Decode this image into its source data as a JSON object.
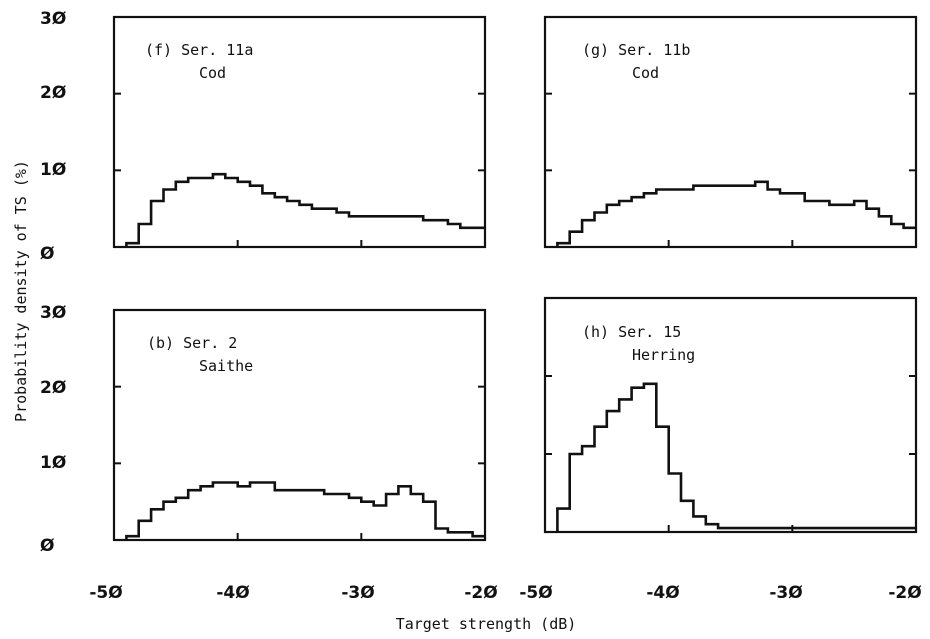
{
  "chart_data": {
    "type": "histogram-grid",
    "ylabel": "Probability density of TS (%)",
    "xlabel": "Target strength (dB)",
    "x_ticks": [
      -50,
      -40,
      -30,
      -20
    ],
    "x_tick_labels": [
      "-5Ø",
      "-4Ø",
      "-3Ø",
      "-2Ø"
    ],
    "y_ticks": [
      0,
      10,
      20,
      30
    ],
    "y_tick_labels": [
      "Ø",
      "1Ø",
      "2Ø",
      "3Ø"
    ],
    "xlim": [
      -50,
      -20
    ],
    "ylim": [
      0,
      30
    ],
    "bin_edges": [
      -49,
      -48,
      -47,
      -46,
      -45,
      -44,
      -43,
      -42,
      -41,
      -40,
      -39,
      -38,
      -37,
      -36,
      -35,
      -34,
      -33,
      -32,
      -31,
      -30,
      -29,
      -28,
      -27,
      -26,
      -25,
      -24,
      -23,
      -22,
      -21,
      -20
    ],
    "panels": [
      {
        "id": "f",
        "line1": "(f) Ser. 11a",
        "line2": "Cod",
        "values": [
          0.5,
          3,
          6,
          7.5,
          8.5,
          9,
          9,
          9.5,
          9,
          8.5,
          8,
          7,
          6.5,
          6,
          5.5,
          5,
          5,
          4.5,
          4,
          4,
          4,
          4,
          4,
          4,
          3.5,
          3.5,
          3,
          2.5,
          2.5
        ]
      },
      {
        "id": "g",
        "line1": "(g) Ser. 11b",
        "line2": "Cod",
        "values": [
          0.5,
          2,
          3.5,
          4.5,
          5.5,
          6,
          6.5,
          7,
          7.5,
          7.5,
          7.5,
          8,
          8,
          8,
          8,
          8,
          8.5,
          7.5,
          7,
          7,
          6,
          6,
          5.5,
          5.5,
          6,
          5,
          4,
          3,
          2.5
        ]
      },
      {
        "id": "b",
        "line1": "(b) Ser. 2",
        "line2": "Saithe",
        "values": [
          0.5,
          2.5,
          4,
          5,
          5.5,
          6.5,
          7,
          7.5,
          7.5,
          7,
          7.5,
          7.5,
          6.5,
          6.5,
          6.5,
          6.5,
          6,
          6,
          5.5,
          5,
          4.5,
          6,
          7,
          6,
          5,
          1.5,
          1,
          1,
          0.5
        ]
      },
      {
        "id": "h",
        "line1": "(h) Ser. 15",
        "line2": "Herring",
        "values": [
          3,
          10,
          11,
          13.5,
          15.5,
          17,
          18.5,
          19,
          13.5,
          7.5,
          4,
          2,
          1,
          0.5,
          0.5,
          0.5,
          0.5,
          0.5,
          0.5,
          0.5,
          0.5,
          0.5,
          0.5,
          0.5,
          0.5,
          0.5,
          0.5,
          0.5,
          0.5
        ]
      }
    ]
  }
}
